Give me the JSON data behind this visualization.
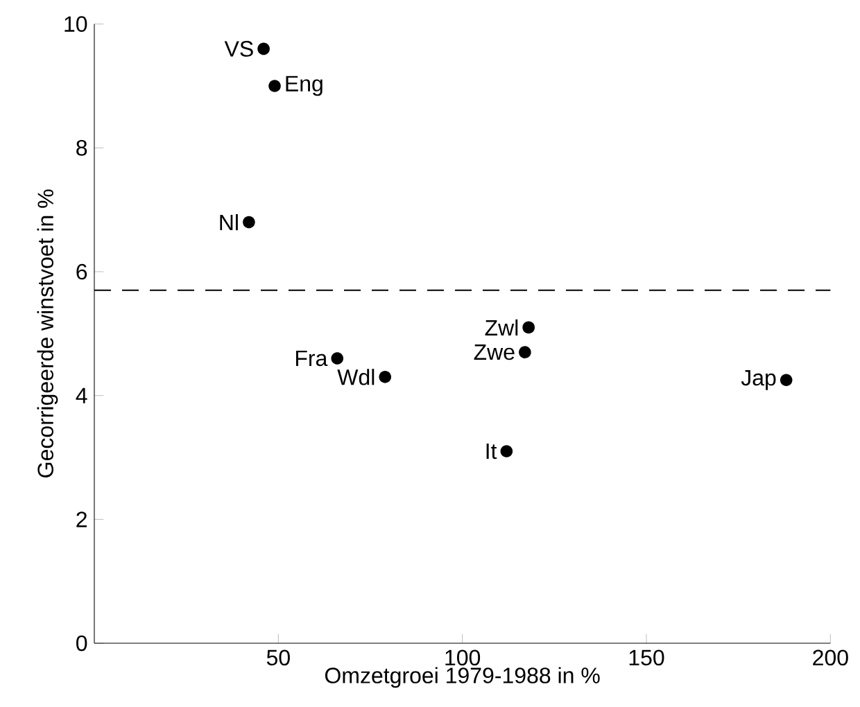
{
  "chart_data": {
    "type": "scatter",
    "xlabel": "Omzetgroei 1979-1988 in %",
    "ylabel": "Gecorrigeerde winstvoet in %",
    "x": [
      46,
      49,
      42,
      66,
      79,
      118,
      117,
      188,
      112
    ],
    "series": [
      {
        "color": "#000000",
        "values": [
          9.6,
          9.0,
          6.8,
          4.6,
          4.3,
          5.1,
          4.7,
          4.25,
          3.1
        ]
      }
    ],
    "xlim": [
      0,
      200
    ],
    "xticks": [
      50,
      100,
      150,
      200
    ],
    "ylim": [
      0,
      10
    ],
    "yticks": [
      0,
      2,
      4,
      6,
      8,
      10
    ],
    "marker": "circle",
    "ref_lines": [
      {
        "axis": "y",
        "value": 5.7,
        "color": "#000000",
        "line_style": "dashed"
      }
    ],
    "annotations": [
      {
        "text": "VS",
        "x": 46,
        "y": 9.6
      },
      {
        "text": "Eng",
        "x": 49,
        "y": 9.0
      },
      {
        "text": "Nl",
        "x": 42,
        "y": 6.8
      },
      {
        "text": "Fra",
        "x": 66,
        "y": 4.6
      },
      {
        "text": "Wdl",
        "x": 79,
        "y": 4.3
      },
      {
        "text": "Zwl",
        "x": 118,
        "y": 5.1
      },
      {
        "text": "Zwe",
        "x": 117,
        "y": 4.7
      },
      {
        "text": "Jap",
        "x": 188,
        "y": 4.25
      },
      {
        "text": "It",
        "x": 112,
        "y": 3.1
      }
    ]
  }
}
